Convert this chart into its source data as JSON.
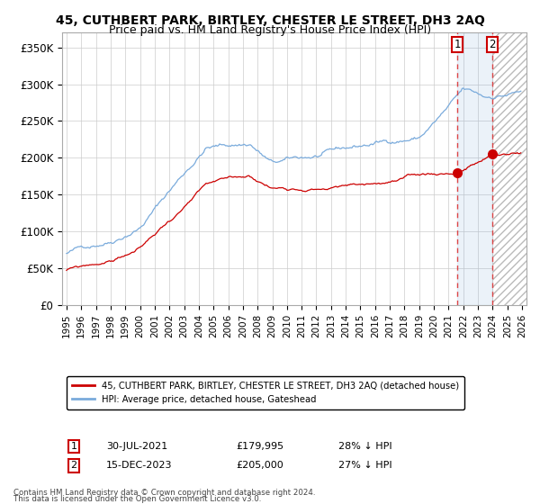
{
  "title": "45, CUTHBERT PARK, BIRTLEY, CHESTER LE STREET, DH3 2AQ",
  "subtitle": "Price paid vs. HM Land Registry's House Price Index (HPI)",
  "title_fontsize": 10,
  "subtitle_fontsize": 9,
  "ylabel_ticks": [
    "£0",
    "£50K",
    "£100K",
    "£150K",
    "£200K",
    "£250K",
    "£300K",
    "£350K"
  ],
  "ytick_vals": [
    0,
    50000,
    100000,
    150000,
    200000,
    250000,
    300000,
    350000
  ],
  "ylim": [
    0,
    370000
  ],
  "xlim_start": 1994.7,
  "xlim_end": 2026.3,
  "hpi_color": "#7aabdc",
  "price_color": "#cc0000",
  "grid_color": "#cccccc",
  "bg_color": "#ffffff",
  "marker1_date": 2021.58,
  "marker1_price": 179995,
  "marker2_date": 2023.96,
  "marker2_price": 205000,
  "vline_color": "#dd3333",
  "legend_label_red": "45, CUTHBERT PARK, BIRTLEY, CHESTER LE STREET, DH3 2AQ (detached house)",
  "legend_label_blue": "HPI: Average price, detached house, Gateshead",
  "annot1_num": "1",
  "annot2_num": "2",
  "annot1_date": "30-JUL-2021",
  "annot1_price": "£179,995",
  "annot1_hpi": "28% ↓ HPI",
  "annot2_date": "15-DEC-2023",
  "annot2_price": "£205,000",
  "annot2_hpi": "27% ↓ HPI",
  "footer1": "Contains HM Land Registry data © Crown copyright and database right 2024.",
  "footer2": "This data is licensed under the Open Government Licence v3.0."
}
